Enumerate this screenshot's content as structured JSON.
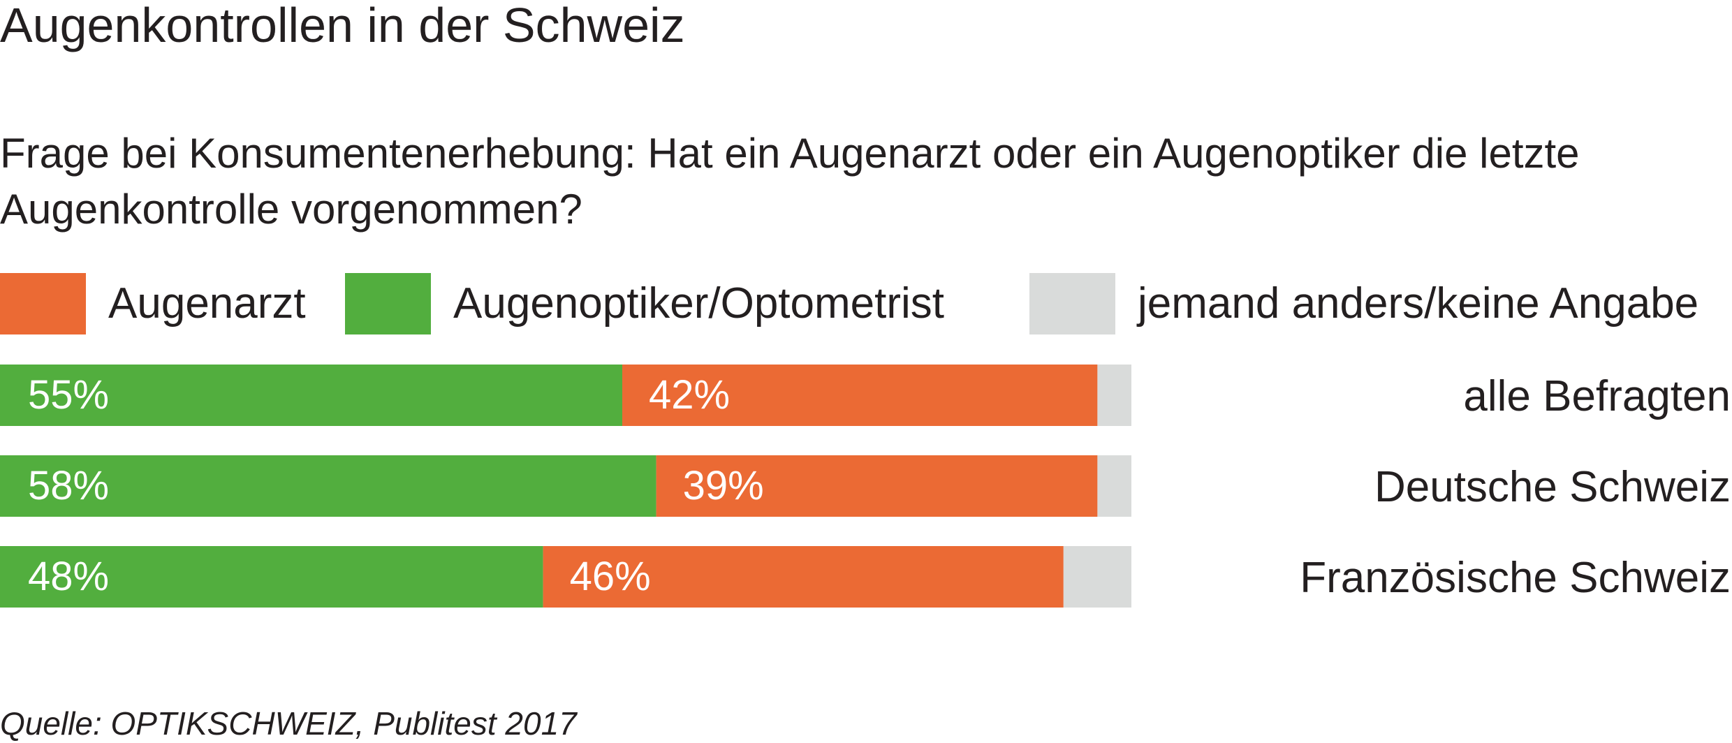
{
  "title": "Augenkontrollen in der Schweiz",
  "question": "Frage bei Konsumentenerhebung: Hat ein Augenarzt oder ein Augenoptiker die letzte Augenkontrolle vorgenommen?",
  "source": "Quelle: OPTIKSCHWEIZ, Publitest 2017",
  "colors": {
    "augenarzt": "#eb6a34",
    "augenoptiker": "#52ae3e",
    "andere": "#d9dbda"
  },
  "chart_data": {
    "type": "bar",
    "orientation": "horizontal",
    "stacked": true,
    "title": "Augenkontrollen in der Schweiz",
    "subtitle": "Frage bei Konsumentenerhebung: Hat ein Augenarzt oder ein Augenoptiker die letzte Augenkontrolle vorgenommen?",
    "categories": [
      "alle Befragten",
      "Deutsche Schweiz",
      "Französische Schweiz"
    ],
    "series": [
      {
        "name": "Augenoptiker/Optometrist",
        "values": [
          55,
          58,
          48
        ],
        "labels": [
          "55%",
          "58%",
          "48%"
        ]
      },
      {
        "name": "Augenarzt",
        "values": [
          42,
          39,
          46
        ],
        "labels": [
          "42%",
          "39%",
          "46%"
        ]
      },
      {
        "name": "jemand anders/keine Angabe",
        "values": [
          3,
          3,
          6
        ]
      }
    ],
    "xlim": [
      0,
      100
    ],
    "legend": [
      "Augenarzt",
      "Augenoptiker/Optometrist",
      "jemand anders/keine Angabe"
    ],
    "legend_position": "top",
    "grid": false
  }
}
